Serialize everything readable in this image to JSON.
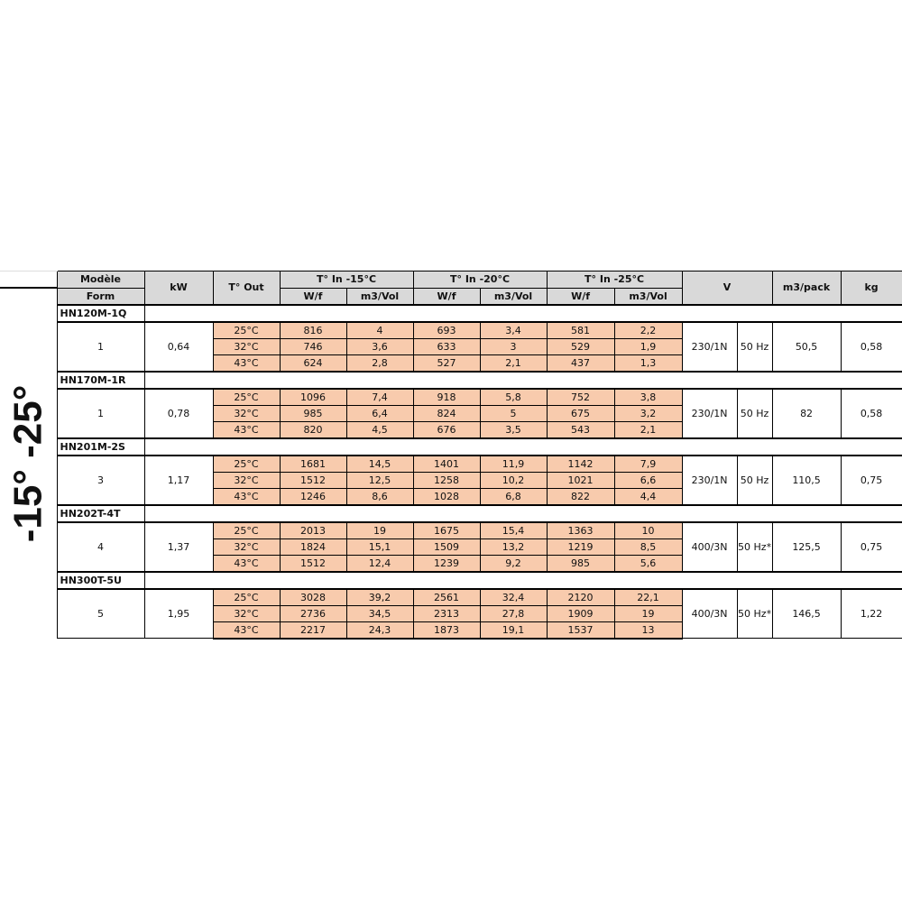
{
  "side_label": "-15° -25°",
  "header": {
    "model": "Modèle",
    "form": "Form",
    "kw": "kW",
    "tout": "T° Out",
    "groups": [
      "T° In -15°C",
      "T° In -20°C",
      "T° In -25°C"
    ],
    "wf": "W/f",
    "vol": "m3/Vol",
    "v": "V",
    "pack": "m3/pack",
    "kg": "kg"
  },
  "colors": {
    "header_bg": "#d9d9d9",
    "data_bg": "#f8cbad"
  },
  "models": [
    {
      "name": "HN120M-1Q",
      "form": "1",
      "kw": "0,64",
      "voltage": "230/1N",
      "hz": "50 Hz",
      "pack": "50,5",
      "kg": "0,58",
      "rows": [
        [
          "25°C",
          "816",
          "4",
          "693",
          "3,4",
          "581",
          "2,2"
        ],
        [
          "32°C",
          "746",
          "3,6",
          "633",
          "3",
          "529",
          "1,9"
        ],
        [
          "43°C",
          "624",
          "2,8",
          "527",
          "2,1",
          "437",
          "1,3"
        ]
      ]
    },
    {
      "name": "HN170M-1R",
      "form": "1",
      "kw": "0,78",
      "voltage": "230/1N",
      "hz": "50 Hz",
      "pack": "82",
      "kg": "0,58",
      "rows": [
        [
          "25°C",
          "1096",
          "7,4",
          "918",
          "5,8",
          "752",
          "3,8"
        ],
        [
          "32°C",
          "985",
          "6,4",
          "824",
          "5",
          "675",
          "3,2"
        ],
        [
          "43°C",
          "820",
          "4,5",
          "676",
          "3,5",
          "543",
          "2,1"
        ]
      ]
    },
    {
      "name": "HN201M-2S",
      "form": "3",
      "kw": "1,17",
      "voltage": "230/1N",
      "hz": "50 Hz",
      "pack": "110,5",
      "kg": "0,75",
      "rows": [
        [
          "25°C",
          "1681",
          "14,5",
          "1401",
          "11,9",
          "1142",
          "7,9"
        ],
        [
          "32°C",
          "1512",
          "12,5",
          "1258",
          "10,2",
          "1021",
          "6,6"
        ],
        [
          "43°C",
          "1246",
          "8,6",
          "1028",
          "6,8",
          "822",
          "4,4"
        ]
      ]
    },
    {
      "name": "HN202T-4T",
      "form": "4",
      "kw": "1,37",
      "voltage": "400/3N",
      "hz": "50 Hz*",
      "pack": "125,5",
      "kg": "0,75",
      "rows": [
        [
          "25°C",
          "2013",
          "19",
          "1675",
          "15,4",
          "1363",
          "10"
        ],
        [
          "32°C",
          "1824",
          "15,1",
          "1509",
          "13,2",
          "1219",
          "8,5"
        ],
        [
          "43°C",
          "1512",
          "12,4",
          "1239",
          "9,2",
          "985",
          "5,6"
        ]
      ]
    },
    {
      "name": "HN300T-5U",
      "form": "5",
      "kw": "1,95",
      "voltage": "400/3N",
      "hz": "50 Hz*",
      "pack": "146,5",
      "kg": "1,22",
      "rows": [
        [
          "25°C",
          "3028",
          "39,2",
          "2561",
          "32,4",
          "2120",
          "22,1"
        ],
        [
          "32°C",
          "2736",
          "34,5",
          "2313",
          "27,8",
          "1909",
          "19"
        ],
        [
          "43°C",
          "2217",
          "24,3",
          "1873",
          "19,1",
          "1537",
          "13"
        ]
      ]
    }
  ]
}
